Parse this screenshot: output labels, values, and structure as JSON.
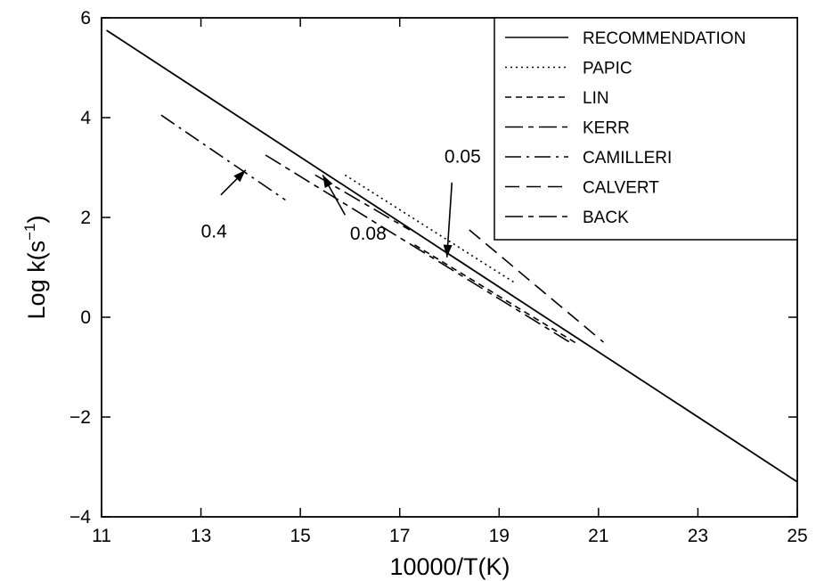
{
  "chart_data": {
    "type": "line",
    "xlabel": "10000/T(K)",
    "ylabel": "Log k(s",
    "ylabel_sup": "−1",
    "ylabel_close": ")",
    "xlim": [
      11,
      25
    ],
    "ylim": [
      -4,
      6
    ],
    "x_ticks": [
      11,
      13,
      15,
      17,
      19,
      21,
      23,
      25
    ],
    "x_tick_labels": [
      "11",
      "13",
      "15",
      "17",
      "19",
      "21",
      "23",
      "25"
    ],
    "y_ticks": [
      -4,
      -2,
      0,
      2,
      4,
      6
    ],
    "y_tick_labels": [
      "−4",
      "−2",
      "0",
      "2",
      "4",
      "6"
    ],
    "grid": false,
    "legend_position": "top-right",
    "series": [
      {
        "name": "RECOMMENDATION",
        "dash": "solid",
        "x": [
          11.1,
          25.0
        ],
        "y": [
          5.75,
          -3.3
        ]
      },
      {
        "name": "PAPIC",
        "dash": "dotted",
        "x": [
          15.9,
          19.3
        ],
        "y": [
          2.85,
          0.7
        ]
      },
      {
        "name": "LIN",
        "dash": "short-dash",
        "x": [
          17.3,
          20.6
        ],
        "y": [
          1.45,
          -0.55
        ]
      },
      {
        "name": "KERR",
        "dash": "long-short",
        "x": [
          15.3,
          17.2
        ],
        "y": [
          2.85,
          1.75
        ]
      },
      {
        "name": "CAMILLERI",
        "dash": "dash-dot",
        "x": [
          12.2,
          14.7
        ],
        "y": [
          4.05,
          2.35
        ]
      },
      {
        "name": "CALVERT",
        "dash": "long-dash",
        "x": [
          18.4,
          21.1
        ],
        "y": [
          1.75,
          -0.5
        ]
      },
      {
        "name": "BACK",
        "dash": "long-short",
        "x": [
          14.3,
          20.5
        ],
        "y": [
          3.25,
          -0.55
        ]
      }
    ],
    "annotations": [
      {
        "text": "0.4",
        "x": 13.0,
        "y": 1.6,
        "arrow_from": [
          13.4,
          2.45
        ],
        "arrow_to": [
          13.9,
          2.95
        ]
      },
      {
        "text": "0.08",
        "x": 16.0,
        "y": 1.55,
        "arrow_from": [
          15.9,
          2.05
        ],
        "arrow_to": [
          15.45,
          2.85
        ]
      },
      {
        "text": "0.05",
        "x": 17.9,
        "y": 3.1,
        "arrow_from": [
          18.05,
          2.7
        ],
        "arrow_to": [
          17.95,
          1.2
        ]
      }
    ]
  }
}
